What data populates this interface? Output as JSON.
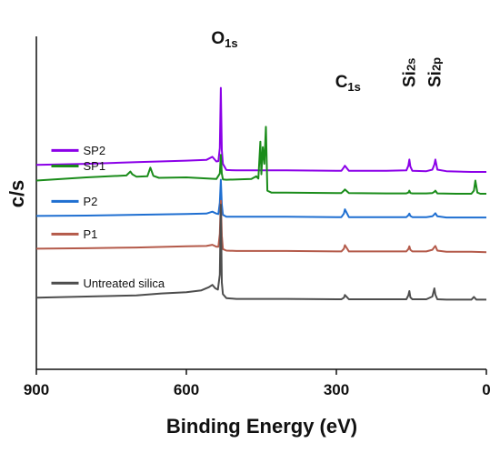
{
  "chart_data": {
    "type": "line",
    "title": "",
    "xlabel": "Binding Energy (eV)",
    "ylabel": "c/s",
    "x_reversed": true,
    "xlim": [
      900,
      0
    ],
    "x_ticks": [
      900,
      600,
      300,
      0
    ],
    "y_ticks_shown": false,
    "grid": false,
    "legend_placement": "per-series label above each stacked trace",
    "annotations": [
      {
        "main": "O",
        "sub": "1s",
        "x": 531
      },
      {
        "main": "C",
        "sub": "1s",
        "x": 284
      },
      {
        "main": "Si",
        "sub": "2s",
        "x": 154
      },
      {
        "main": "Si",
        "sub": "2p",
        "x": 103
      }
    ],
    "series": [
      {
        "name": "SP2",
        "color": "#8b00e8",
        "label_x": 870,
        "x": [
          900,
          800,
          700,
          600,
          560,
          548,
          540,
          536,
          533,
          531,
          529,
          527,
          520,
          500,
          400,
          300,
          290,
          285,
          283,
          275,
          200,
          160,
          156,
          154,
          152,
          148,
          120,
          108,
          104,
          102,
          98,
          80,
          30,
          0
        ],
        "y": [
          10.2,
          10.5,
          10.9,
          11.3,
          11.5,
          12.3,
          11.1,
          11.2,
          14.5,
          30.0,
          14.0,
          10.5,
          8.9,
          8.8,
          8.8,
          8.7,
          8.7,
          9.6,
          10.0,
          8.7,
          8.7,
          8.8,
          10.0,
          11.6,
          9.8,
          8.7,
          8.6,
          9.0,
          10.3,
          11.6,
          9.0,
          8.6,
          8.4,
          8.4
        ]
      },
      {
        "name": "SP1",
        "color": "#1a8c1a",
        "label_x": 870,
        "x": [
          900,
          800,
          720,
          712,
          708,
          700,
          678,
          672,
          666,
          655,
          600,
          540,
          533,
          531,
          529,
          527,
          520,
          470,
          460,
          456,
          452,
          450,
          447,
          444,
          441,
          438,
          430,
          400,
          300,
          290,
          285,
          283,
          275,
          200,
          160,
          156,
          154,
          152,
          148,
          120,
          108,
          104,
          102,
          98,
          60,
          30,
          25,
          22,
          18,
          12,
          0
        ],
        "y": [
          6.2,
          7.0,
          7.5,
          8.5,
          7.8,
          7.2,
          7.3,
          9.5,
          7.4,
          6.9,
          7.0,
          6.6,
          8.0,
          12.8,
          8.0,
          6.5,
          6.4,
          6.6,
          7.3,
          6.7,
          16.2,
          7.8,
          14.8,
          10.5,
          20.0,
          3.6,
          3.1,
          3.1,
          3.0,
          3.0,
          3.6,
          3.9,
          3.0,
          2.9,
          2.9,
          3.1,
          3.6,
          3.0,
          2.9,
          2.9,
          3.0,
          3.3,
          3.6,
          2.9,
          2.8,
          2.8,
          3.6,
          6.2,
          3.1,
          2.8,
          2.8
        ]
      },
      {
        "name": "P2",
        "color": "#1f6fd1",
        "label_x": 870,
        "x": [
          900,
          800,
          700,
          600,
          560,
          548,
          540,
          536,
          533,
          531,
          529,
          527,
          520,
          500,
          400,
          300,
          290,
          285,
          283,
          275,
          200,
          160,
          156,
          154,
          152,
          148,
          120,
          108,
          104,
          102,
          98,
          80,
          30,
          0
        ],
        "y": [
          -2.9,
          -2.8,
          -2.6,
          -2.4,
          -2.3,
          -1.8,
          -2.3,
          -2.4,
          0.5,
          6.4,
          0.0,
          -2.6,
          -3.1,
          -3.1,
          -3.1,
          -3.2,
          -3.2,
          -2.3,
          -1.2,
          -3.2,
          -3.2,
          -3.2,
          -2.7,
          -2.3,
          -2.9,
          -3.2,
          -3.2,
          -3.0,
          -2.5,
          -2.2,
          -3.0,
          -3.3,
          -3.3,
          -3.3
        ]
      },
      {
        "name": "P1",
        "color": "#b45a4a",
        "label_x": 870,
        "x": [
          900,
          800,
          700,
          600,
          560,
          548,
          540,
          536,
          533,
          531,
          529,
          527,
          520,
          500,
          400,
          300,
          290,
          285,
          283,
          275,
          200,
          160,
          156,
          154,
          152,
          148,
          120,
          108,
          104,
          102,
          98,
          80,
          30,
          0
        ],
        "y": [
          -11.3,
          -11.2,
          -11.0,
          -10.7,
          -10.6,
          -10.3,
          -10.8,
          -10.8,
          -7.5,
          1.0,
          -8.0,
          -11.4,
          -11.8,
          -11.9,
          -11.9,
          -12.0,
          -12.0,
          -11.3,
          -10.4,
          -12.0,
          -12.0,
          -12.0,
          -11.4,
          -10.7,
          -11.6,
          -12.0,
          -12.0,
          -11.6,
          -10.9,
          -10.6,
          -11.8,
          -12.1,
          -12.1,
          -12.2
        ]
      },
      {
        "name": "Untreated silica",
        "color": "#4d4d4d",
        "label_x": 870,
        "x": [
          900,
          800,
          700,
          650,
          600,
          570,
          555,
          548,
          542,
          537,
          533,
          531,
          529,
          527,
          520,
          500,
          400,
          300,
          290,
          285,
          283,
          275,
          200,
          160,
          156,
          154,
          152,
          148,
          120,
          108,
          104,
          102,
          98,
          80,
          30,
          25,
          20,
          0
        ],
        "y": [
          -23.9,
          -23.6,
          -23.3,
          -22.8,
          -22.5,
          -22.0,
          -21.2,
          -20.6,
          -21.5,
          -21.8,
          -18.0,
          0.0,
          -20.0,
          -23.0,
          -24.0,
          -24.2,
          -24.2,
          -24.3,
          -24.3,
          -23.9,
          -23.2,
          -24.3,
          -24.3,
          -24.3,
          -23.3,
          -22.2,
          -23.8,
          -24.3,
          -24.3,
          -23.6,
          -21.5,
          -23.1,
          -24.3,
          -24.4,
          -24.4,
          -23.7,
          -24.4,
          -24.4
        ]
      }
    ]
  }
}
